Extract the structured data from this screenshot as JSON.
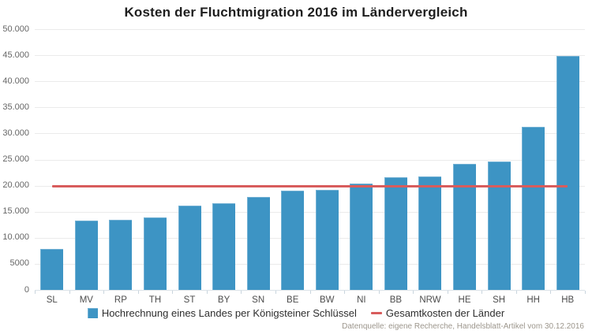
{
  "title": "Kosten der Fluchtmigration 2016 im Ländervergleich",
  "footer": "Datenquelle: eigene Recherche, Handelsblatt-Artikel vom 30.12.2016",
  "colors": {
    "bar": "#3d94c4",
    "line": "#d85c5c",
    "grid": "#ebebeb",
    "background": "#ffffff"
  },
  "legend": {
    "items": [
      {
        "marker": "bar-swatch",
        "label": "Hochrechnung eines Landes per Königsteiner Schlüssel",
        "color": "#3d94c4"
      },
      {
        "marker": "line-dash",
        "label": "Gesamtkosten der Länder",
        "color": "#d85c5c"
      }
    ]
  },
  "chart_data": {
    "type": "bar",
    "title": "Kosten der Fluchtmigration 2016 im Ländervergleich",
    "categories": [
      "SL",
      "MV",
      "RP",
      "TH",
      "ST",
      "BY",
      "SN",
      "BE",
      "BW",
      "NI",
      "BB",
      "NRW",
      "HE",
      "SH",
      "HH",
      "HB"
    ],
    "series": [
      {
        "name": "Hochrechnung eines Landes per Königsteiner Schlüssel",
        "type": "bar",
        "color": "#3d94c4",
        "values": [
          7900,
          13300,
          13400,
          13900,
          16100,
          16600,
          17800,
          19100,
          19200,
          20400,
          21600,
          21700,
          24200,
          24600,
          31300,
          44800
        ]
      },
      {
        "name": "Gesamtkosten der Länder",
        "type": "line",
        "color": "#d85c5c",
        "constant_value": 19900
      }
    ],
    "xlabel": "",
    "ylabel": "",
    "ylim": [
      0,
      50000
    ],
    "grid": true,
    "legend_position": "bottom",
    "y_ticks": [
      {
        "label": "50.000",
        "value": 50000
      },
      {
        "label": "45.000",
        "value": 45000
      },
      {
        "label": "40.000",
        "value": 40000
      },
      {
        "label": "35.000",
        "value": 35000
      },
      {
        "label": "30.000",
        "value": 30000
      },
      {
        "label": "25.000",
        "value": 25000
      },
      {
        "label": "20.000",
        "value": 20000
      },
      {
        "label": "15.000",
        "value": 15000
      },
      {
        "label": "10.000",
        "value": 10000
      },
      {
        "label": "5000",
        "value": 5000
      },
      {
        "label": "0",
        "value": 0
      }
    ]
  }
}
